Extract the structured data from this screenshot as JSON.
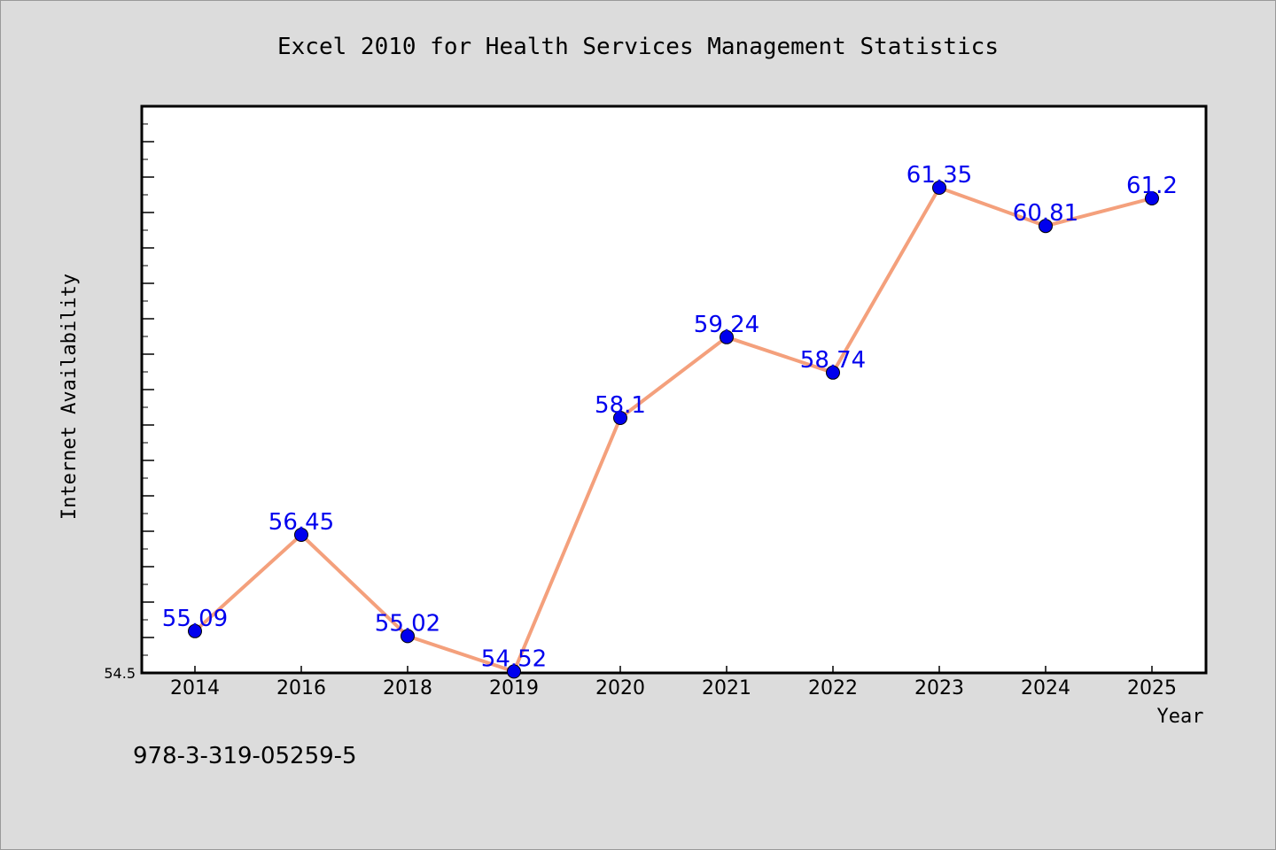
{
  "chart_data": {
    "type": "line",
    "title": "Excel 2010 for Health Services Management Statistics",
    "xlabel": "Year",
    "ylabel": "Internet Availability",
    "categories": [
      "2014",
      "2016",
      "2018",
      "2019",
      "2020",
      "2021",
      "2022",
      "2023",
      "2024",
      "2025"
    ],
    "series": [
      {
        "values": [
          55.09,
          56.45,
          55.02,
          54.52,
          58.1,
          59.24,
          58.74,
          61.35,
          60.81,
          61.2
        ],
        "labels": [
          "55.09",
          "56.45",
          "55.02",
          "54.52",
          "58.1",
          "59.24",
          "58.74",
          "61.35",
          "60.81",
          "61.2"
        ]
      }
    ],
    "ylim": [
      54.5,
      62.5
    ],
    "ytick_label": "54.5",
    "grid": false,
    "line_color": "#f4a07c",
    "marker_color": "#0000ee",
    "label_color": "#0000ee"
  },
  "footer": {
    "isbn": "978-3-319-05259-5"
  }
}
